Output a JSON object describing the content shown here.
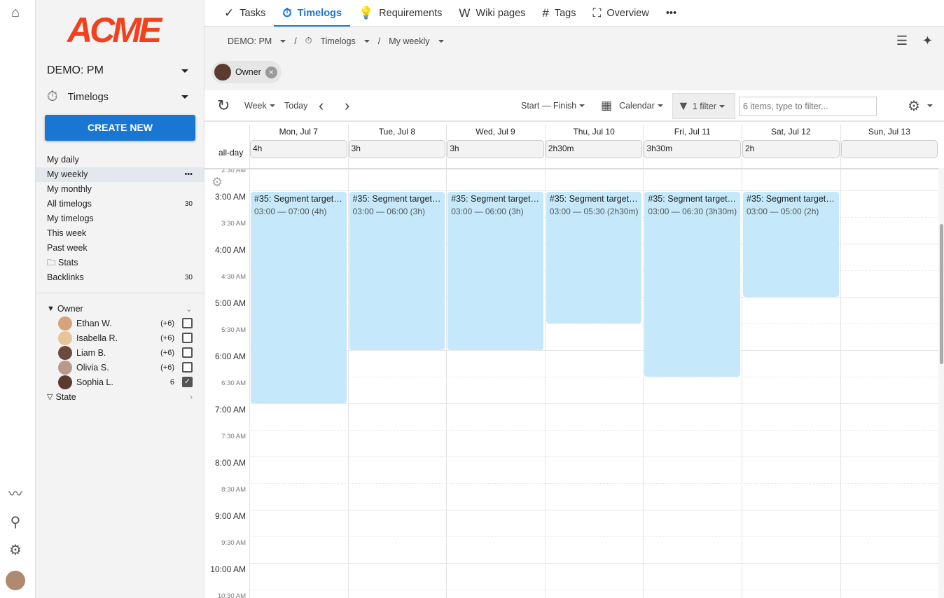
{
  "rail": {
    "icons": [
      "home-icon",
      "activity-icon",
      "search-icon",
      "settings-icon",
      "avatar"
    ]
  },
  "sidebar": {
    "logo": "ACME",
    "project": "DEMO: PM",
    "module": "Timelogs",
    "create_label": "CREATE NEW",
    "items": [
      {
        "label": "My daily"
      },
      {
        "label": "My weekly",
        "active": true,
        "more": "•••"
      },
      {
        "label": "My monthly"
      },
      {
        "label": "All timelogs",
        "count": "30"
      },
      {
        "label": "My timelogs"
      },
      {
        "label": "This week"
      },
      {
        "label": "Past week"
      },
      {
        "label": "Stats",
        "folder": true
      },
      {
        "label": "Backlinks",
        "count": "30"
      }
    ],
    "owner_filter": {
      "label": "Owner",
      "people": [
        {
          "name": "Ethan W.",
          "count": "(+6)",
          "checked": false,
          "color": "#d9a27a"
        },
        {
          "name": "Isabella R.",
          "count": "(+6)",
          "checked": false,
          "color": "#e8c49a"
        },
        {
          "name": "Liam B.",
          "count": "(+6)",
          "checked": false,
          "color": "#6b4a3a"
        },
        {
          "name": "Olivia S.",
          "count": "(+6)",
          "checked": false,
          "color": "#b8998a"
        },
        {
          "name": "Sophia L.",
          "count": "6",
          "checked": true,
          "color": "#5a3b2e"
        }
      ]
    },
    "state_filter": {
      "label": "State"
    }
  },
  "tabs": [
    {
      "label": "Tasks",
      "icon": "check-icon",
      "glyph": "✓"
    },
    {
      "label": "Timelogs",
      "icon": "stopwatch-icon",
      "glyph": "⏱",
      "active": true
    },
    {
      "label": "Requirements",
      "icon": "lightbulb-icon",
      "glyph": "💡"
    },
    {
      "label": "Wiki pages",
      "icon": "wikipedia-icon",
      "glyph": "W"
    },
    {
      "label": "Tags",
      "icon": "hash-icon",
      "glyph": "#"
    },
    {
      "label": "Overview",
      "icon": "team-icon",
      "glyph": "⛶"
    }
  ],
  "tabs_more": "•••",
  "breadcrumb": {
    "project": "DEMO: PM",
    "module": "Timelogs",
    "view": "My weekly"
  },
  "chip": {
    "label": "Owner"
  },
  "toolbar": {
    "week": "Week",
    "today": "Today",
    "range": "Start — Finish",
    "calendar": "Calendar",
    "filter": "1 filter",
    "filter_placeholder": "6 items, type to filter..."
  },
  "calendar": {
    "allday_label": "all-day",
    "days": [
      {
        "label": "Mon, Jul 7",
        "total": "4h"
      },
      {
        "label": "Tue, Jul 8",
        "total": "3h"
      },
      {
        "label": "Wed, Jul 9",
        "total": "3h"
      },
      {
        "label": "Thu, Jul 10",
        "total": "2h30m"
      },
      {
        "label": "Fri, Jul 11",
        "total": "3h30m"
      },
      {
        "label": "Sat, Jul 12",
        "total": "2h"
      },
      {
        "label": "Sun, Jul 13",
        "total": ""
      }
    ],
    "times": [
      "2:30 AM",
      "3:00 AM",
      "3:30 AM",
      "4:00 AM",
      "4:30 AM",
      "5:00 AM",
      "5:30 AM",
      "6:00 AM",
      "6:30 AM",
      "7:00 AM",
      "7:30 AM",
      "8:00 AM",
      "8:30 AM",
      "9:00 AM",
      "9:30 AM",
      "10:00 AM",
      "10:30 AM"
    ],
    "events": [
      {
        "day": 0,
        "title": "#35: Segment target ...",
        "time": "03:00 — 07:00 (4h)",
        "start": 3,
        "end": 7
      },
      {
        "day": 1,
        "title": "#35: Segment target ...",
        "time": "03:00 — 06:00 (3h)",
        "start": 3,
        "end": 6
      },
      {
        "day": 2,
        "title": "#35: Segment target ...",
        "time": "03:00 — 06:00 (3h)",
        "start": 3,
        "end": 6
      },
      {
        "day": 3,
        "title": "#35: Segment target ...",
        "time": "03:00 — 05:30 (2h30m)",
        "start": 3,
        "end": 5.5
      },
      {
        "day": 4,
        "title": "#35: Segment target ...",
        "time": "03:00 — 06:30 (3h30m)",
        "start": 3,
        "end": 6.5
      },
      {
        "day": 5,
        "title": "#35: Segment target ...",
        "time": "03:00 — 05:00 (2h)",
        "start": 3,
        "end": 5
      }
    ]
  },
  "colors": {
    "accent": "#1976d2",
    "event": "#c5e9fa",
    "logo": "#f0421c"
  }
}
